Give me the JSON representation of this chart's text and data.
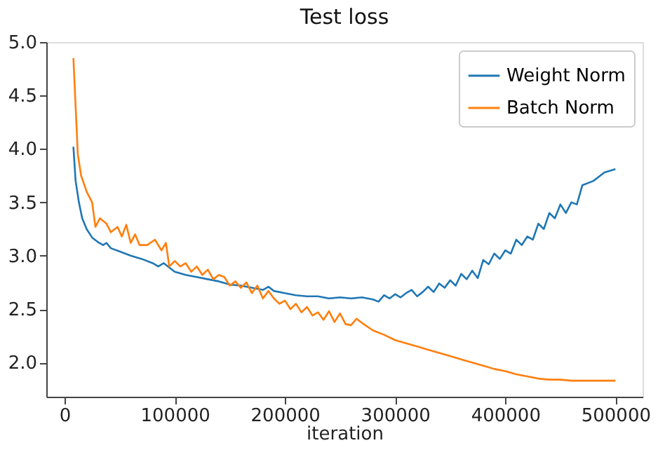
{
  "chart_data": {
    "type": "line",
    "title": "Test loss",
    "xlabel": "iteration",
    "xlim": [
      -16600,
      524600
    ],
    "ylim": [
      1.68,
      5.0
    ],
    "xticks": [
      0,
      100000,
      200000,
      300000,
      400000,
      500000
    ],
    "yticks": [
      {
        "value": 2.0,
        "label": "2.0"
      },
      {
        "value": 2.5,
        "label": "2.5"
      },
      {
        "value": 3.0,
        "label": "3.0"
      },
      {
        "value": 3.5,
        "label": "3.5"
      },
      {
        "value": 4.0,
        "label": "4.0"
      },
      {
        "value": 4.5,
        "label": "4.5"
      },
      {
        "value": 5.0,
        "label": "5.0"
      }
    ],
    "grid": false,
    "legend": "top right",
    "marker": "none",
    "line_style": "solid",
    "series": [
      {
        "name": "Weight Norm",
        "color": "#1f77b4",
        "x": [
          8000,
          10000,
          13000,
          16000,
          20000,
          25000,
          30000,
          35000,
          38000,
          42000,
          50000,
          60000,
          70000,
          80000,
          85000,
          90000,
          100000,
          110000,
          120000,
          130000,
          140000,
          150000,
          160000,
          170000,
          180000,
          185000,
          190000,
          200000,
          210000,
          220000,
          230000,
          240000,
          250000,
          260000,
          270000,
          280000,
          285000,
          290000,
          295000,
          300000,
          305000,
          310000,
          315000,
          320000,
          325000,
          330000,
          335000,
          340000,
          345000,
          350000,
          355000,
          360000,
          365000,
          370000,
          375000,
          380000,
          385000,
          390000,
          395000,
          400000,
          405000,
          410000,
          415000,
          420000,
          425000,
          430000,
          435000,
          440000,
          445000,
          450000,
          455000,
          460000,
          465000,
          470000,
          480000,
          490000,
          500000
        ],
        "values": [
          4.02,
          3.7,
          3.5,
          3.35,
          3.25,
          3.17,
          3.13,
          3.1,
          3.12,
          3.07,
          3.04,
          3.0,
          2.97,
          2.93,
          2.9,
          2.93,
          2.85,
          2.82,
          2.8,
          2.78,
          2.76,
          2.73,
          2.72,
          2.7,
          2.68,
          2.71,
          2.67,
          2.65,
          2.63,
          2.62,
          2.62,
          2.6,
          2.61,
          2.6,
          2.61,
          2.59,
          2.57,
          2.63,
          2.6,
          2.64,
          2.61,
          2.65,
          2.68,
          2.62,
          2.66,
          2.71,
          2.66,
          2.74,
          2.7,
          2.77,
          2.72,
          2.83,
          2.78,
          2.86,
          2.79,
          2.96,
          2.92,
          3.02,
          2.97,
          3.05,
          3.02,
          3.15,
          3.1,
          3.18,
          3.15,
          3.3,
          3.25,
          3.4,
          3.35,
          3.48,
          3.4,
          3.5,
          3.48,
          3.66,
          3.7,
          3.78,
          3.81
        ]
      },
      {
        "name": "Batch Norm",
        "color": "#ff7f0e",
        "x": [
          8000,
          12000,
          15000,
          20000,
          25000,
          28000,
          32000,
          38000,
          42000,
          48000,
          52000,
          56000,
          60000,
          64000,
          68000,
          75000,
          82000,
          88000,
          92000,
          95000,
          100000,
          105000,
          110000,
          115000,
          120000,
          125000,
          130000,
          135000,
          140000,
          145000,
          150000,
          155000,
          160000,
          165000,
          170000,
          175000,
          180000,
          185000,
          190000,
          195000,
          200000,
          205000,
          210000,
          215000,
          220000,
          225000,
          230000,
          235000,
          240000,
          245000,
          250000,
          255000,
          260000,
          265000,
          270000,
          280000,
          290000,
          300000,
          310000,
          320000,
          330000,
          340000,
          350000,
          360000,
          370000,
          380000,
          390000,
          400000,
          410000,
          420000,
          430000,
          440000,
          450000,
          460000,
          470000,
          480000,
          490000,
          500000
        ],
        "values": [
          4.85,
          3.95,
          3.75,
          3.6,
          3.5,
          3.27,
          3.35,
          3.3,
          3.22,
          3.27,
          3.18,
          3.29,
          3.12,
          3.2,
          3.1,
          3.1,
          3.15,
          3.05,
          3.12,
          2.9,
          2.95,
          2.9,
          2.93,
          2.85,
          2.9,
          2.82,
          2.87,
          2.78,
          2.82,
          2.8,
          2.72,
          2.76,
          2.7,
          2.75,
          2.65,
          2.72,
          2.6,
          2.67,
          2.6,
          2.55,
          2.58,
          2.5,
          2.55,
          2.47,
          2.52,
          2.44,
          2.47,
          2.4,
          2.48,
          2.38,
          2.46,
          2.36,
          2.35,
          2.41,
          2.37,
          2.3,
          2.26,
          2.21,
          2.18,
          2.15,
          2.12,
          2.09,
          2.06,
          2.03,
          2.0,
          1.97,
          1.94,
          1.92,
          1.89,
          1.87,
          1.85,
          1.84,
          1.84,
          1.83,
          1.83,
          1.83,
          1.83,
          1.83
        ]
      }
    ]
  }
}
